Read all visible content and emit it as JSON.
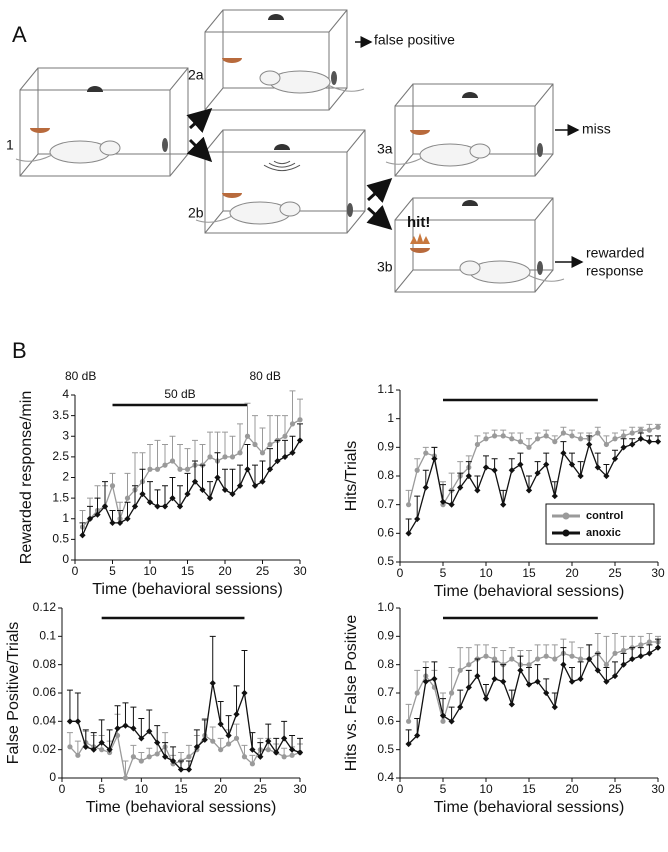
{
  "panel_labels": [
    "A",
    "B"
  ],
  "diagram": {
    "stages": [
      "1",
      "2a",
      "2b",
      "3a",
      "3b"
    ],
    "outcomes": [
      "false positive",
      "miss",
      [
        "rewarded",
        "response"
      ]
    ],
    "hit_label": "hit!"
  },
  "chart_data": [
    {
      "type": "line",
      "ylabel": "Rewarded response/min",
      "xlabel": "Time (behavioral sessions)",
      "annotations": [
        "80 dB",
        "50 dB",
        "80 dB"
      ],
      "stimulus_span": [
        5,
        23
      ],
      "x": [
        1,
        2,
        3,
        4,
        5,
        6,
        7,
        8,
        9,
        10,
        11,
        12,
        13,
        14,
        15,
        16,
        17,
        18,
        19,
        20,
        21,
        22,
        23,
        24,
        25,
        26,
        27,
        28,
        29,
        30
      ],
      "xlim": [
        0,
        30
      ],
      "xticks": [
        0,
        5,
        10,
        15,
        20,
        25,
        30
      ],
      "ylim": [
        0,
        4
      ],
      "yticks": [
        0,
        0.5,
        1,
        1.5,
        2,
        2.5,
        3,
        3.5,
        4
      ],
      "series": [
        {
          "name": "control",
          "color": "#9a9a9a",
          "values": [
            0.8,
            1.0,
            1.2,
            1.3,
            1.8,
            1.0,
            1.5,
            1.7,
            1.9,
            2.2,
            2.2,
            2.3,
            2.4,
            2.2,
            2.2,
            2.3,
            2.3,
            2.5,
            2.4,
            2.5,
            2.5,
            2.6,
            3.0,
            2.8,
            2.6,
            2.8,
            2.9,
            3.0,
            3.3,
            3.4
          ],
          "errors": [
            0.4,
            0.5,
            0.6,
            0.5,
            0.3,
            0.4,
            0.6,
            0.9,
            0.7,
            0.6,
            0.7,
            0.5,
            0.6,
            0.6,
            0.5,
            0.6,
            0.5,
            0.6,
            0.7,
            0.6,
            0.5,
            0.7,
            0.8,
            0.7,
            0.6,
            0.7,
            0.6,
            0.5,
            0.8,
            0.5
          ]
        },
        {
          "name": "anoxic",
          "color": "#111111",
          "values": [
            0.6,
            1.0,
            1.1,
            1.3,
            0.9,
            0.9,
            1.0,
            1.3,
            1.6,
            1.4,
            1.3,
            1.3,
            1.5,
            1.3,
            1.6,
            1.9,
            1.7,
            1.5,
            2.0,
            1.7,
            1.6,
            1.8,
            2.2,
            1.8,
            1.9,
            2.2,
            2.4,
            2.5,
            2.6,
            2.9
          ],
          "errors": [
            0.3,
            0.3,
            0.4,
            0.6,
            0.3,
            0.3,
            0.4,
            0.5,
            0.6,
            0.5,
            0.4,
            0.5,
            0.5,
            0.5,
            0.5,
            0.5,
            0.6,
            0.4,
            0.6,
            0.5,
            0.6,
            0.5,
            0.6,
            0.5,
            0.5,
            0.5,
            0.5,
            0.4,
            0.4,
            0.4
          ]
        }
      ]
    },
    {
      "type": "line",
      "ylabel": "Hits/Trials",
      "xlabel": "Time (behavioral sessions)",
      "stimulus_span": [
        5,
        23
      ],
      "legend": "lower right",
      "x": [
        1,
        2,
        3,
        4,
        5,
        6,
        7,
        8,
        9,
        10,
        11,
        12,
        13,
        14,
        15,
        16,
        17,
        18,
        19,
        20,
        21,
        22,
        23,
        24,
        25,
        26,
        27,
        28,
        29,
        30
      ],
      "xlim": [
        0,
        30
      ],
      "xticks": [
        0,
        5,
        10,
        15,
        20,
        25,
        30
      ],
      "ylim": [
        0.5,
        1.1
      ],
      "yticks": [
        0.5,
        0.6,
        0.7,
        0.8,
        0.9,
        1,
        1.1
      ],
      "series": [
        {
          "name": "control",
          "color": "#9a9a9a",
          "values": [
            0.7,
            0.82,
            0.88,
            0.87,
            0.7,
            0.75,
            0.8,
            0.83,
            0.91,
            0.93,
            0.94,
            0.94,
            0.93,
            0.92,
            0.9,
            0.93,
            0.94,
            0.92,
            0.95,
            0.94,
            0.93,
            0.93,
            0.95,
            0.91,
            0.93,
            0.94,
            0.95,
            0.96,
            0.96,
            0.97
          ],
          "errors": [
            0.05,
            0.04,
            0.02,
            0.03,
            0.08,
            0.06,
            0.05,
            0.04,
            0.03,
            0.02,
            0.02,
            0.02,
            0.02,
            0.03,
            0.03,
            0.02,
            0.02,
            0.02,
            0.02,
            0.02,
            0.02,
            0.02,
            0.02,
            0.03,
            0.02,
            0.02,
            0.02,
            0.01,
            0.02,
            0.01
          ]
        },
        {
          "name": "anoxic",
          "color": "#111111",
          "values": [
            0.6,
            0.65,
            0.76,
            0.86,
            0.71,
            0.7,
            0.76,
            0.8,
            0.75,
            0.83,
            0.82,
            0.7,
            0.82,
            0.84,
            0.75,
            0.81,
            0.84,
            0.73,
            0.88,
            0.84,
            0.8,
            0.91,
            0.83,
            0.8,
            0.86,
            0.9,
            0.91,
            0.93,
            0.92,
            0.92
          ],
          "errors": [
            0.05,
            0.08,
            0.06,
            0.04,
            0.06,
            0.05,
            0.05,
            0.05,
            0.05,
            0.04,
            0.04,
            0.05,
            0.04,
            0.04,
            0.05,
            0.04,
            0.04,
            0.05,
            0.04,
            0.04,
            0.05,
            0.03,
            0.05,
            0.04,
            0.03,
            0.03,
            0.02,
            0.02,
            0.02,
            0.02
          ]
        }
      ]
    },
    {
      "type": "line",
      "ylabel": "False Positive/Trials",
      "xlabel": "Time (behavioral sessions)",
      "stimulus_span": [
        5,
        23
      ],
      "x": [
        1,
        2,
        3,
        4,
        5,
        6,
        7,
        8,
        9,
        10,
        11,
        12,
        13,
        14,
        15,
        16,
        17,
        18,
        19,
        20,
        21,
        22,
        23,
        24,
        25,
        26,
        27,
        28,
        29,
        30
      ],
      "xlim": [
        0,
        30
      ],
      "xticks": [
        0,
        5,
        10,
        15,
        20,
        25,
        30
      ],
      "ylim": [
        0,
        0.12
      ],
      "yticks": [
        0,
        0.02,
        0.04,
        0.06,
        0.08,
        0.1,
        0.12
      ],
      "series": [
        {
          "name": "control",
          "color": "#9a9a9a",
          "values": [
            0.022,
            0.016,
            0.025,
            0.022,
            0.02,
            0.018,
            0.03,
            0.0,
            0.015,
            0.012,
            0.015,
            0.017,
            0.022,
            0.01,
            0.012,
            0.015,
            0.02,
            0.03,
            0.026,
            0.02,
            0.024,
            0.028,
            0.015,
            0.01,
            0.02,
            0.02,
            0.018,
            0.015,
            0.016,
            0.018
          ],
          "errors": [
            0.01,
            0.01,
            0.008,
            0.008,
            0.01,
            0.008,
            0.015,
            0.012,
            0.008,
            0.006,
            0.006,
            0.008,
            0.01,
            0.006,
            0.006,
            0.008,
            0.01,
            0.012,
            0.01,
            0.008,
            0.01,
            0.01,
            0.008,
            0.006,
            0.008,
            0.008,
            0.006,
            0.006,
            0.006,
            0.006
          ]
        },
        {
          "name": "anoxic",
          "color": "#111111",
          "values": [
            0.04,
            0.04,
            0.022,
            0.02,
            0.025,
            0.02,
            0.035,
            0.037,
            0.035,
            0.028,
            0.033,
            0.025,
            0.015,
            0.012,
            0.006,
            0.006,
            0.022,
            0.027,
            0.067,
            0.038,
            0.03,
            0.045,
            0.06,
            0.02,
            0.015,
            0.026,
            0.018,
            0.028,
            0.02,
            0.018
          ],
          "errors": [
            0.022,
            0.02,
            0.012,
            0.012,
            0.016,
            0.014,
            0.016,
            0.016,
            0.015,
            0.014,
            0.015,
            0.012,
            0.01,
            0.01,
            0.006,
            0.006,
            0.012,
            0.014,
            0.033,
            0.016,
            0.014,
            0.02,
            0.03,
            0.012,
            0.01,
            0.012,
            0.01,
            0.012,
            0.01,
            0.01
          ]
        }
      ]
    },
    {
      "type": "line",
      "ylabel": "Hits vs. False Positive",
      "xlabel": "Time (behavioral sessions)",
      "stimulus_span": [
        5,
        23
      ],
      "x": [
        1,
        2,
        3,
        4,
        5,
        6,
        7,
        8,
        9,
        10,
        11,
        12,
        13,
        14,
        15,
        16,
        17,
        18,
        19,
        20,
        21,
        22,
        23,
        24,
        25,
        26,
        27,
        28,
        29,
        30
      ],
      "xlim": [
        0,
        30
      ],
      "xticks": [
        0,
        5,
        10,
        15,
        20,
        25,
        30
      ],
      "ylim": [
        0.4,
        1.0
      ],
      "yticks": [
        0.4,
        0.5,
        0.6,
        0.7,
        0.8,
        0.9,
        {
          "value": 1,
          "label": "1.0"
        }
      ],
      "series": [
        {
          "name": "control",
          "color": "#9a9a9a",
          "values": [
            0.6,
            0.7,
            0.76,
            0.72,
            0.6,
            0.7,
            0.78,
            0.8,
            0.82,
            0.83,
            0.82,
            0.8,
            0.82,
            0.8,
            0.8,
            0.82,
            0.83,
            0.82,
            0.84,
            0.83,
            0.82,
            0.82,
            0.84,
            0.8,
            0.84,
            0.85,
            0.86,
            0.87,
            0.88,
            0.88
          ],
          "errors": [
            0.06,
            0.08,
            0.05,
            0.06,
            0.1,
            0.09,
            0.08,
            0.06,
            0.05,
            0.04,
            0.04,
            0.05,
            0.04,
            0.05,
            0.05,
            0.05,
            0.04,
            0.05,
            0.05,
            0.05,
            0.04,
            0.05,
            0.07,
            0.1,
            0.07,
            0.05,
            0.04,
            0.03,
            0.03,
            0.02
          ]
        },
        {
          "name": "anoxic",
          "color": "#111111",
          "values": [
            0.52,
            0.55,
            0.74,
            0.75,
            0.62,
            0.6,
            0.65,
            0.72,
            0.76,
            0.68,
            0.75,
            0.74,
            0.66,
            0.78,
            0.73,
            0.74,
            0.7,
            0.65,
            0.8,
            0.74,
            0.75,
            0.82,
            0.78,
            0.74,
            0.76,
            0.8,
            0.82,
            0.83,
            0.84,
            0.86
          ],
          "errors": [
            0.05,
            0.06,
            0.05,
            0.06,
            0.06,
            0.05,
            0.06,
            0.06,
            0.06,
            0.05,
            0.06,
            0.06,
            0.05,
            0.05,
            0.06,
            0.06,
            0.05,
            0.05,
            0.06,
            0.05,
            0.06,
            0.05,
            0.06,
            0.05,
            0.05,
            0.04,
            0.04,
            0.03,
            0.03,
            0.03
          ]
        }
      ]
    }
  ]
}
